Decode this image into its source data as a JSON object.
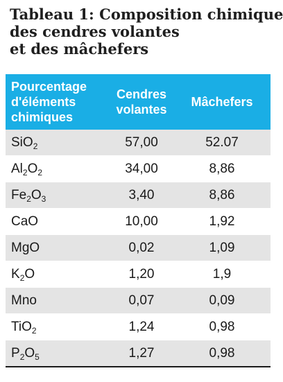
{
  "caption": {
    "line1": "Tableau 1: Composition chimique",
    "line2": "des cendres volantes",
    "line3": "et des mâchefers"
  },
  "table": {
    "headers": {
      "col0": [
        "Pourcentage",
        "d'éléments",
        "chimiques"
      ],
      "col1": [
        "Cendres",
        "volantes"
      ],
      "col2": "Mâchefers"
    },
    "rows": [
      {
        "formula": [
          {
            "t": "SiO"
          },
          {
            "s": "2"
          }
        ],
        "cendres": "57,00",
        "machefers": "52.07"
      },
      {
        "formula": [
          {
            "t": "Al"
          },
          {
            "s": "2"
          },
          {
            "t": "O"
          },
          {
            "s": "2"
          }
        ],
        "cendres": "34,00",
        "machefers": "8,86"
      },
      {
        "formula": [
          {
            "t": "Fe"
          },
          {
            "s": "2"
          },
          {
            "t": "O"
          },
          {
            "s": "3"
          }
        ],
        "cendres": "3,40",
        "machefers": "8,86"
      },
      {
        "formula": [
          {
            "t": "CaO"
          }
        ],
        "cendres": "10,00",
        "machefers": "1,92"
      },
      {
        "formula": [
          {
            "t": "MgO"
          }
        ],
        "cendres": "0,02",
        "machefers": "1,09"
      },
      {
        "formula": [
          {
            "t": "K"
          },
          {
            "s": "2"
          },
          {
            "t": "O"
          }
        ],
        "cendres": "1,20",
        "machefers": "1,9"
      },
      {
        "formula": [
          {
            "t": "Mno"
          }
        ],
        "cendres": "0,07",
        "machefers": "0,09"
      },
      {
        "formula": [
          {
            "t": "TiO"
          },
          {
            "s": "2"
          }
        ],
        "cendres": "1,24",
        "machefers": "0,98"
      },
      {
        "formula": [
          {
            "t": "P"
          },
          {
            "s": "2"
          },
          {
            "t": "O"
          },
          {
            "s": "5"
          }
        ],
        "cendres": "1,27",
        "machefers": "0,98"
      }
    ]
  }
}
